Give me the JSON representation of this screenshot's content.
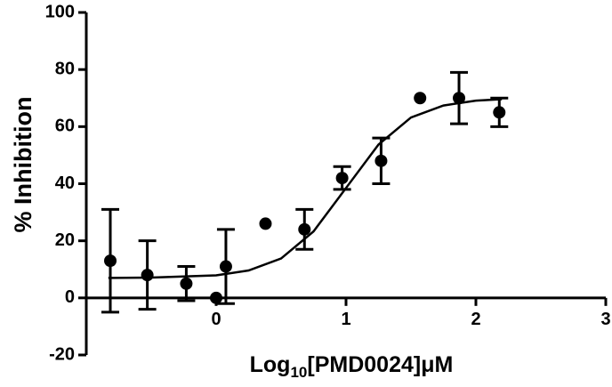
{
  "chart_data": {
    "type": "scatter",
    "ylabel": "% Inhibition",
    "xlabel_parts": [
      "Log",
      "10",
      "[PMD0024]μM"
    ],
    "x": [
      -0.815,
      -0.53,
      -0.23,
      0.0,
      0.075,
      0.38,
      0.68,
      0.97,
      1.27,
      1.57,
      1.87,
      2.18
    ],
    "series": [
      {
        "color": "#000000",
        "values": [
          13,
          8,
          5,
          0,
          11,
          26,
          24,
          42,
          48,
          70,
          70,
          65
        ],
        "errors": [
          18,
          12,
          6,
          null,
          13,
          null,
          7,
          4,
          8,
          null,
          9,
          5
        ]
      }
    ],
    "curve": {
      "color": "#000000",
      "x": [
        -0.83,
        -0.5,
        0,
        0.25,
        0.5,
        0.75,
        1,
        1.25,
        1.5,
        1.75,
        2,
        2.2
      ],
      "values": [
        7.0,
        7.1,
        7.9,
        9.6,
        13.8,
        23.3,
        38.5,
        53.7,
        63.2,
        67.4,
        69.1,
        69.6
      ]
    },
    "xlim": [
      -1,
      3
    ],
    "xticks": [
      0,
      1,
      2,
      3
    ],
    "ylim": [
      -20,
      100
    ],
    "yticks": [
      -20,
      0,
      20,
      40,
      60,
      80,
      100
    ]
  }
}
